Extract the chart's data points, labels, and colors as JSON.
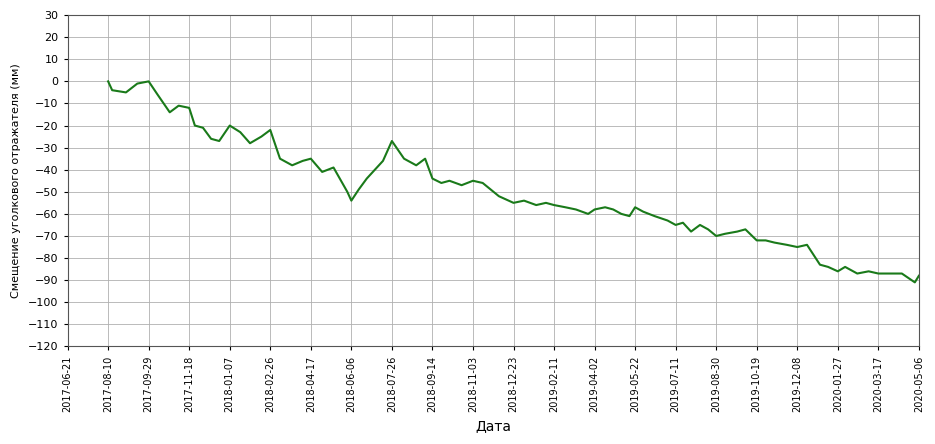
{
  "title": "",
  "xlabel": "Дата",
  "ylabel": "Смещение уголкового отражателя (мм)",
  "ylim": [
    -120,
    30
  ],
  "yticks": [
    -120,
    -110,
    -100,
    -90,
    -80,
    -70,
    -60,
    -50,
    -40,
    -30,
    -20,
    -10,
    0,
    10,
    20,
    30
  ],
  "line_color": "#1a7a1a",
  "line_width": 1.5,
  "background_color": "#ffffff",
  "grid_color": "#b0b0b0",
  "xtick_dates": [
    "2017-06-21",
    "2017-08-10",
    "2017-09-29",
    "2017-11-18",
    "2018-01-07",
    "2018-02-26",
    "2018-04-17",
    "2018-06-06",
    "2018-07-26",
    "2018-09-14",
    "2018-11-03",
    "2018-12-23",
    "2019-02-11",
    "2019-04-02",
    "2019-05-22",
    "2019-07-11",
    "2019-08-30",
    "2019-10-19",
    "2019-12-08",
    "2020-01-27",
    "2020-03-17",
    "2020-05-06"
  ],
  "dates": [
    "2017-08-10",
    "2017-08-15",
    "2017-09-01",
    "2017-09-15",
    "2017-09-29",
    "2017-10-10",
    "2017-10-25",
    "2017-11-05",
    "2017-11-18",
    "2017-11-25",
    "2017-12-05",
    "2017-12-15",
    "2017-12-25",
    "2018-01-07",
    "2018-01-20",
    "2018-02-01",
    "2018-02-15",
    "2018-02-26",
    "2018-03-10",
    "2018-03-25",
    "2018-04-07",
    "2018-04-17",
    "2018-05-01",
    "2018-05-15",
    "2018-06-01",
    "2018-06-06",
    "2018-06-15",
    "2018-06-25",
    "2018-07-05",
    "2018-07-15",
    "2018-07-26",
    "2018-08-10",
    "2018-08-25",
    "2018-09-05",
    "2018-09-14",
    "2018-09-25",
    "2018-10-05",
    "2018-10-20",
    "2018-11-03",
    "2018-11-15",
    "2018-11-25",
    "2018-12-05",
    "2018-12-23",
    "2019-01-05",
    "2019-01-20",
    "2019-02-01",
    "2019-02-11",
    "2019-02-25",
    "2019-03-10",
    "2019-03-25",
    "2019-04-02",
    "2019-04-15",
    "2019-04-25",
    "2019-05-05",
    "2019-05-15",
    "2019-05-22",
    "2019-06-01",
    "2019-06-15",
    "2019-07-01",
    "2019-07-11",
    "2019-07-20",
    "2019-07-30",
    "2019-08-10",
    "2019-08-20",
    "2019-08-30",
    "2019-09-10",
    "2019-09-25",
    "2019-10-05",
    "2019-10-19",
    "2019-10-30",
    "2019-11-10",
    "2019-11-25",
    "2019-12-08",
    "2019-12-20",
    "2020-01-05",
    "2020-01-15",
    "2020-01-27",
    "2020-02-05",
    "2020-02-20",
    "2020-03-05",
    "2020-03-17",
    "2020-03-30",
    "2020-04-15",
    "2020-05-01",
    "2020-05-06"
  ],
  "values": [
    0,
    -4,
    -5,
    -1,
    0,
    -6,
    -14,
    -11,
    -12,
    -20,
    -21,
    -26,
    -27,
    -20,
    -23,
    -28,
    -25,
    -22,
    -35,
    -38,
    -36,
    -35,
    -41,
    -39,
    -50,
    -54,
    -49,
    -44,
    -40,
    -36,
    -27,
    -35,
    -38,
    -35,
    -44,
    -46,
    -45,
    -47,
    -45,
    -46,
    -49,
    -52,
    -55,
    -54,
    -56,
    -55,
    -56,
    -57,
    -58,
    -60,
    -58,
    -57,
    -58,
    -60,
    -61,
    -57,
    -59,
    -61,
    -63,
    -65,
    -64,
    -68,
    -65,
    -67,
    -70,
    -69,
    -68,
    -67,
    -72,
    -72,
    -73,
    -74,
    -75,
    -74,
    -83,
    -84,
    -86,
    -84,
    -87,
    -86,
    -87,
    -87,
    -87,
    -91,
    -88
  ]
}
